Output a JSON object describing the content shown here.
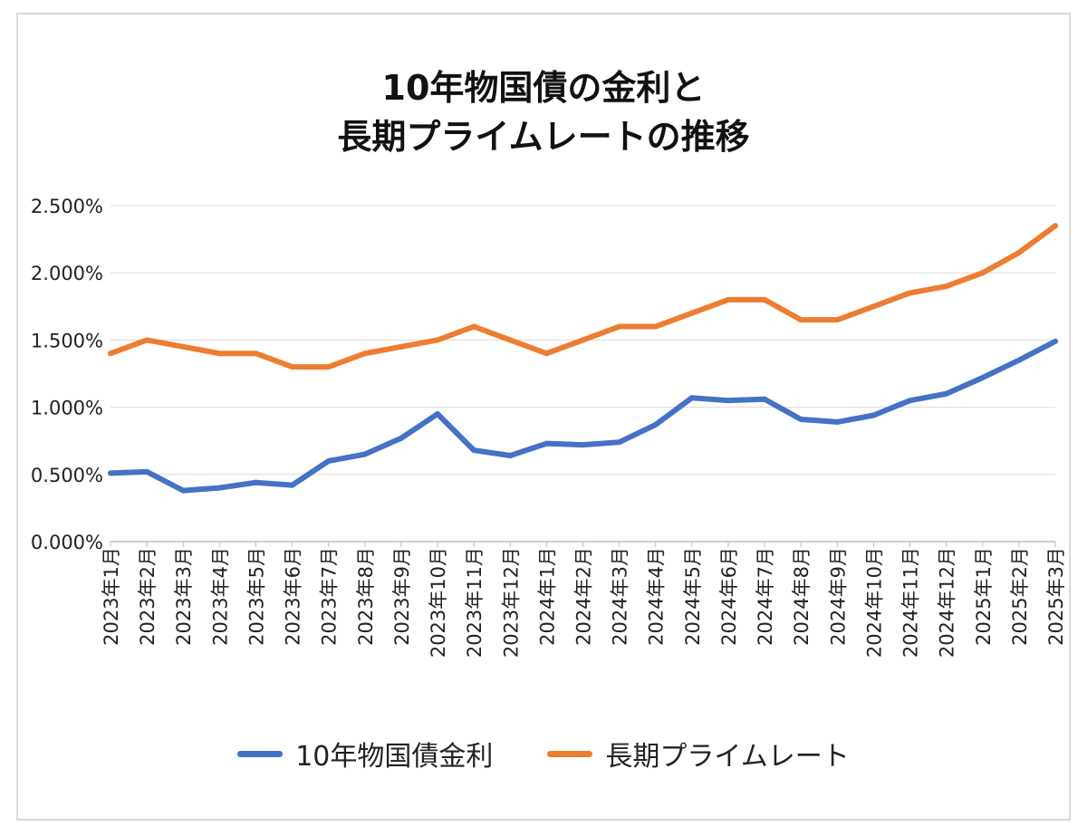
{
  "chart_data": {
    "type": "line",
    "title": "10年物国債の金利と\n長期プライムレートの推移",
    "title_lines": [
      "10年物国債の金利と",
      "長期プライムレートの推移"
    ],
    "xlabel": "",
    "ylabel": "",
    "ylim": [
      0,
      2.5
    ],
    "yticks": [
      0,
      0.5,
      1.0,
      1.5,
      2.0,
      2.5
    ],
    "ytick_labels": [
      "0.000%",
      "0.500%",
      "1.000%",
      "1.500%",
      "2.000%",
      "2.500%"
    ],
    "grid": true,
    "legend_position": "bottom",
    "categories": [
      "2023年1月",
      "2023年2月",
      "2023年3月",
      "2023年4月",
      "2023年5月",
      "2023年6月",
      "2023年7月",
      "2023年8月",
      "2023年9月",
      "2023年10月",
      "2023年11月",
      "2023年12月",
      "2024年1月",
      "2024年2月",
      "2024年3月",
      "2024年4月",
      "2024年5月",
      "2024年6月",
      "2024年7月",
      "2024年8月",
      "2024年9月",
      "2024年10月",
      "2024年11月",
      "2024年12月",
      "2025年1月",
      "2025年2月",
      "2025年3月"
    ],
    "series": [
      {
        "name": "10年物国債金利",
        "color": "#4472c4",
        "values": [
          0.51,
          0.52,
          0.38,
          0.4,
          0.44,
          0.42,
          0.6,
          0.65,
          0.77,
          0.95,
          0.68,
          0.64,
          0.73,
          0.72,
          0.74,
          0.87,
          1.07,
          1.05,
          1.06,
          0.91,
          0.89,
          0.94,
          1.05,
          1.1,
          1.22,
          1.35,
          1.49
        ]
      },
      {
        "name": "長期プライムレート",
        "color": "#ed7d31",
        "values": [
          1.4,
          1.5,
          1.45,
          1.4,
          1.4,
          1.3,
          1.3,
          1.4,
          1.45,
          1.5,
          1.6,
          1.5,
          1.4,
          1.5,
          1.6,
          1.6,
          1.7,
          1.8,
          1.8,
          1.65,
          1.65,
          1.75,
          1.85,
          1.9,
          2.0,
          2.15,
          2.35
        ]
      }
    ]
  }
}
